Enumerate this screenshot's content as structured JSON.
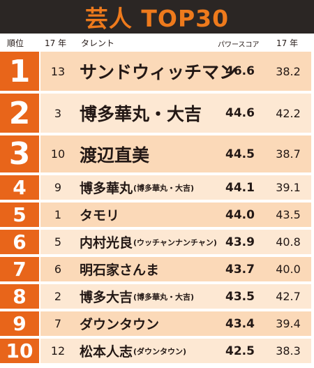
{
  "title": "芸人 TOP30",
  "header": {
    "rank": "順位",
    "prev_year": "17 年",
    "talent": "タレント",
    "power_score": "パワースコア",
    "year": "17 年"
  },
  "colors": {
    "title_bg": "#2b2624",
    "title_text": "#ee7a1c",
    "rank_bg": "#e8651a",
    "band_a": "#fbd9b8",
    "band_b": "#fde8d3"
  },
  "rows": [
    {
      "rank": "1",
      "prev": "13",
      "name": "サンドウィッチマン",
      "sub": "",
      "score": "46.6",
      "year": "38.2"
    },
    {
      "rank": "2",
      "prev": "3",
      "name": "博多華丸・大吉",
      "sub": "",
      "score": "44.6",
      "year": "42.2"
    },
    {
      "rank": "3",
      "prev": "10",
      "name": "渡辺直美",
      "sub": "",
      "score": "44.5",
      "year": "38.7"
    },
    {
      "rank": "4",
      "prev": "9",
      "name": "博多華丸",
      "sub": "(博多華丸・大吉)",
      "score": "44.1",
      "year": "39.1"
    },
    {
      "rank": "5",
      "prev": "1",
      "name": "タモリ",
      "sub": "",
      "score": "44.0",
      "year": "43.5"
    },
    {
      "rank": "6",
      "prev": "5",
      "name": "内村光良",
      "sub": "(ウッチャンナンチャン)",
      "score": "43.9",
      "year": "40.8"
    },
    {
      "rank": "7",
      "prev": "6",
      "name": "明石家さんま",
      "sub": "",
      "score": "43.7",
      "year": "40.0"
    },
    {
      "rank": "8",
      "prev": "2",
      "name": "博多大吉",
      "sub": "(博多華丸・大吉)",
      "score": "43.5",
      "year": "42.7"
    },
    {
      "rank": "9",
      "prev": "7",
      "name": "ダウンタウン",
      "sub": "",
      "score": "43.4",
      "year": "39.4"
    },
    {
      "rank": "10",
      "prev": "12",
      "name": "松本人志",
      "sub": "(ダウンタウン)",
      "score": "42.5",
      "year": "38.3"
    }
  ]
}
